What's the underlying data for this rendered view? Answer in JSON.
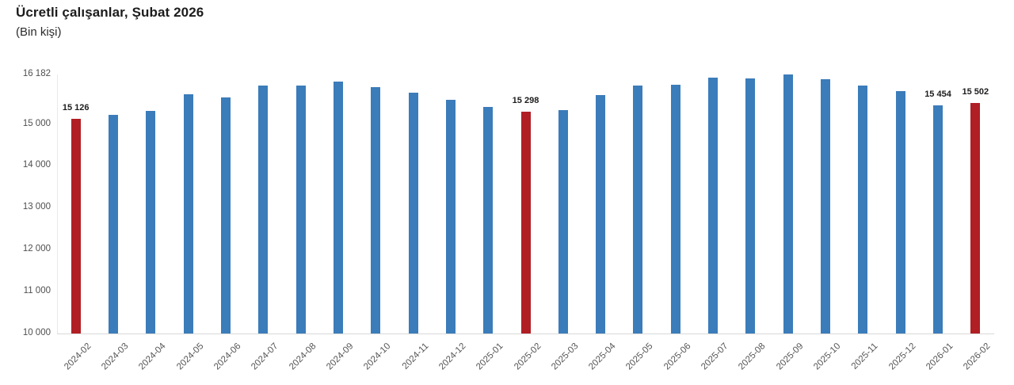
{
  "header": {
    "title": "Ücretli çalışanlar, Şubat 2026",
    "subtitle": "(Bin kişi)"
  },
  "chart_data": {
    "type": "bar",
    "title": "Ücretli çalışanlar, Şubat 2026",
    "subtitle": "(Bin kişi)",
    "xlabel": "",
    "ylabel": "",
    "ylim": [
      10000,
      16182
    ],
    "grid": false,
    "legend": false,
    "y_ticks": [
      {
        "value": 16182,
        "label": "16 182"
      },
      {
        "value": 15000,
        "label": "15 000"
      },
      {
        "value": 14000,
        "label": "14 000"
      },
      {
        "value": 13000,
        "label": "13 000"
      },
      {
        "value": 12000,
        "label": "12 000"
      },
      {
        "value": 11000,
        "label": "11 000"
      },
      {
        "value": 10000,
        "label": "10 000"
      }
    ],
    "categories": [
      "2024-02",
      "2024-03",
      "2024-04",
      "2024-05",
      "2024-06",
      "2024-07",
      "2024-08",
      "2024-09",
      "2024-10",
      "2024-11",
      "2024-12",
      "2025-01",
      "2025-02",
      "2025-03",
      "2025-04",
      "2025-05",
      "2025-06",
      "2025-07",
      "2025-08",
      "2025-09",
      "2025-10",
      "2025-11",
      "2025-12",
      "2026-01",
      "2026-02"
    ],
    "series": [
      {
        "name": "Ücretli çalışanlar (bin kişi)",
        "values": [
          15126,
          15225,
          15310,
          15710,
          15625,
          15915,
          15910,
          16005,
          15880,
          15740,
          15580,
          15410,
          15298,
          15330,
          15690,
          15910,
          15945,
          16115,
          16085,
          16182,
          16060,
          15915,
          15780,
          15454,
          15502
        ]
      }
    ],
    "highlighted_categories": [
      "2024-02",
      "2025-02",
      "2026-02"
    ],
    "point_labels": [
      {
        "category": "2024-02",
        "text": "15 126"
      },
      {
        "category": "2025-02",
        "text": "15 298"
      },
      {
        "category": "2026-01",
        "text": "15 454"
      },
      {
        "category": "2026-02",
        "text": "15 502"
      }
    ],
    "colors": {
      "bar": "#3b7cba",
      "highlight": "#b01f24",
      "axis_line_y": "#e9e9e9",
      "axis_line_x": "#d9d9d9",
      "tick_label": "#4f4f4f",
      "point_label": "#1d1d1d"
    }
  }
}
